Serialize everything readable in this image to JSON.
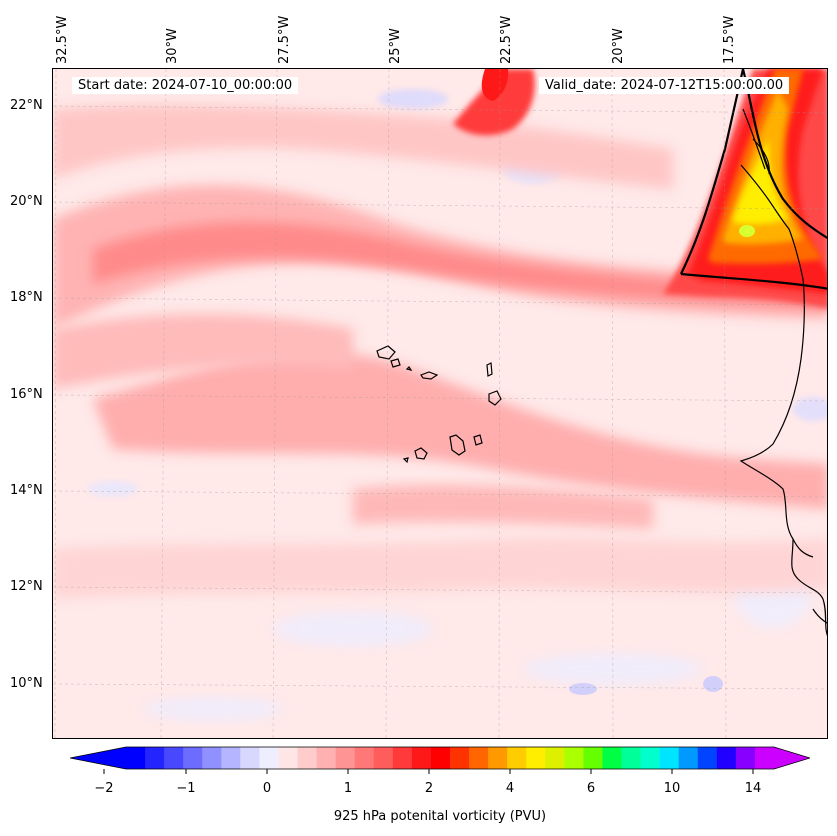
{
  "header": {
    "start_date": "Start date: 2024-07-10_00:00:00",
    "valid_date": "Valid_date: 2024-07-12T15:00:00.00"
  },
  "map": {
    "longitude_labels": [
      "32.5°W",
      "30°W",
      "27.5°W",
      "25°W",
      "22.5°W",
      "20°W",
      "17.5°W"
    ],
    "latitude_labels": [
      "22°N",
      "20°N",
      "18°N",
      "16°N",
      "14°N",
      "12°N",
      "10°N"
    ],
    "features": [
      "Cape Verde islands",
      "West African coastline"
    ]
  },
  "colorbar": {
    "label": "925 hPa potenital vorticity (PVU)",
    "tick_labels": [
      "−2",
      "−1",
      "0",
      "1",
      "2",
      "4",
      "6",
      "10",
      "14"
    ],
    "colors": [
      "#0000ff",
      "#2424ff",
      "#4848ff",
      "#6c6cff",
      "#9090ff",
      "#b4b4ff",
      "#d8d8ff",
      "#eeeeff",
      "#ffe6e6",
      "#ffcccc",
      "#ffb0b0",
      "#ff9494",
      "#ff7878",
      "#ff5c5c",
      "#ff3a3a",
      "#ff1818",
      "#ff0000",
      "#ff3300",
      "#ff6600",
      "#ff9900",
      "#ffcc00",
      "#ffee00",
      "#ddf000",
      "#aaff00",
      "#66ff00",
      "#00ff44",
      "#00ff99",
      "#00ffcc",
      "#00e5ff",
      "#0099ff",
      "#0044ff",
      "#2200ff",
      "#8800ff",
      "#cc00ff"
    ]
  }
}
